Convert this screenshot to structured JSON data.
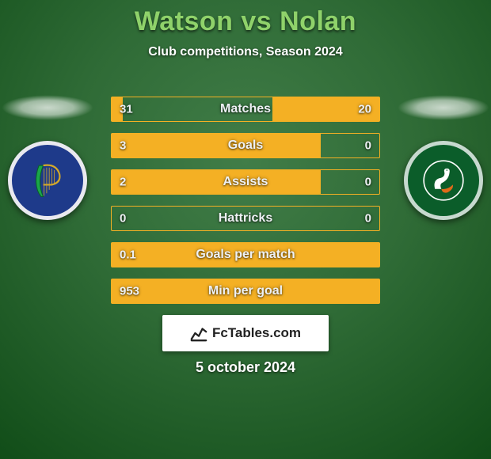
{
  "background_color": "#2f6b36",
  "title": {
    "text": "Watson vs Nolan",
    "color": "#8fd26a",
    "fontsize": 34
  },
  "subtitle": {
    "text": "Club competitions, Season 2024",
    "color": "#ffffff",
    "fontsize": 16
  },
  "teams": {
    "left": {
      "name": "finn-harps",
      "crest_bg": "#1e3a8a",
      "crest_border": "#e9e9ef"
    },
    "right": {
      "name": "bray-wanderers",
      "crest_bg": "#0b5d2a",
      "crest_border": "#c7d9cf"
    }
  },
  "bars": {
    "border_color": "#f4b024",
    "track_color": "rgba(0,0,0,0)",
    "left_fill_color": "#f4b024",
    "right_fill_color": "#f4b024",
    "value_color": "#eef1f4",
    "label_color": "#eef1f4",
    "value_fontsize": 15,
    "label_fontsize": 16,
    "rows": [
      {
        "label": "Matches",
        "left_val": "31",
        "right_val": "20",
        "left_frac": 0.04,
        "right_frac": 0.4
      },
      {
        "label": "Goals",
        "left_val": "3",
        "right_val": "0",
        "left_frac": 0.78,
        "right_frac": 0.0
      },
      {
        "label": "Assists",
        "left_val": "2",
        "right_val": "0",
        "left_frac": 0.78,
        "right_frac": 0.0
      },
      {
        "label": "Hattricks",
        "left_val": "0",
        "right_val": "0",
        "left_frac": 0.0,
        "right_frac": 0.0
      },
      {
        "label": "Goals per match",
        "left_val": "0.1",
        "right_val": "",
        "left_frac": 1.0,
        "right_frac": 0.0
      },
      {
        "label": "Min per goal",
        "left_val": "953",
        "right_val": "",
        "left_frac": 1.0,
        "right_frac": 0.0
      }
    ]
  },
  "footer": {
    "brand_text": "FcTables.com",
    "brand_fontsize": 17,
    "date_text": "5 october 2024",
    "date_color": "#ffffff",
    "date_fontsize": 18
  }
}
